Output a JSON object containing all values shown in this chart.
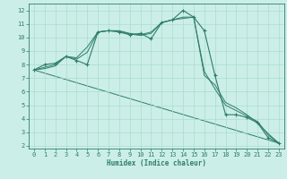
{
  "xlabel": "Humidex (Indice chaleur)",
  "background_color": "#cceee8",
  "grid_color": "#aaddcc",
  "line_color": "#2e7d6b",
  "xlim": [
    -0.5,
    23.5
  ],
  "ylim": [
    1.8,
    12.5
  ],
  "yticks": [
    2,
    3,
    4,
    5,
    6,
    7,
    8,
    9,
    10,
    11,
    12
  ],
  "xticks": [
    0,
    1,
    2,
    3,
    4,
    5,
    6,
    7,
    8,
    9,
    10,
    11,
    12,
    13,
    14,
    15,
    16,
    17,
    18,
    19,
    20,
    21,
    22,
    23
  ],
  "main_line": {
    "x": [
      0,
      1,
      2,
      3,
      4,
      5,
      6,
      7,
      8,
      9,
      10,
      11,
      12,
      13,
      14,
      15,
      16,
      17,
      18,
      19,
      20,
      21,
      22,
      23
    ],
    "y": [
      7.6,
      8.0,
      8.1,
      8.6,
      8.3,
      8.0,
      10.4,
      10.5,
      10.4,
      10.2,
      10.3,
      9.9,
      11.1,
      11.3,
      12.0,
      11.5,
      10.5,
      7.2,
      4.3,
      4.3,
      4.1,
      3.7,
      2.6,
      2.2
    ]
  },
  "smooth_line1": {
    "x": [
      0,
      1,
      2,
      3,
      4,
      5,
      6,
      7,
      8,
      9,
      10,
      11,
      12,
      13,
      14,
      15,
      16,
      17,
      18,
      19,
      20,
      21,
      22,
      23
    ],
    "y": [
      7.6,
      7.8,
      8.0,
      8.6,
      8.5,
      9.3,
      10.4,
      10.5,
      10.5,
      10.3,
      10.2,
      10.4,
      11.1,
      11.3,
      11.5,
      11.5,
      7.2,
      6.5,
      5.2,
      4.8,
      4.3,
      3.7,
      2.9,
      2.2
    ]
  },
  "smooth_line2": {
    "x": [
      0,
      1,
      2,
      3,
      4,
      5,
      6,
      7,
      8,
      9,
      10,
      11,
      12,
      13,
      14,
      15,
      16,
      17,
      18,
      19,
      20,
      21,
      22,
      23
    ],
    "y": [
      7.6,
      7.7,
      7.9,
      8.6,
      8.4,
      8.9,
      10.4,
      10.5,
      10.45,
      10.25,
      10.15,
      10.3,
      11.1,
      11.3,
      11.4,
      11.5,
      7.5,
      6.2,
      5.0,
      4.6,
      4.2,
      3.8,
      2.8,
      2.2
    ]
  },
  "trend_line": {
    "x": [
      0,
      23
    ],
    "y": [
      7.6,
      2.2
    ]
  }
}
